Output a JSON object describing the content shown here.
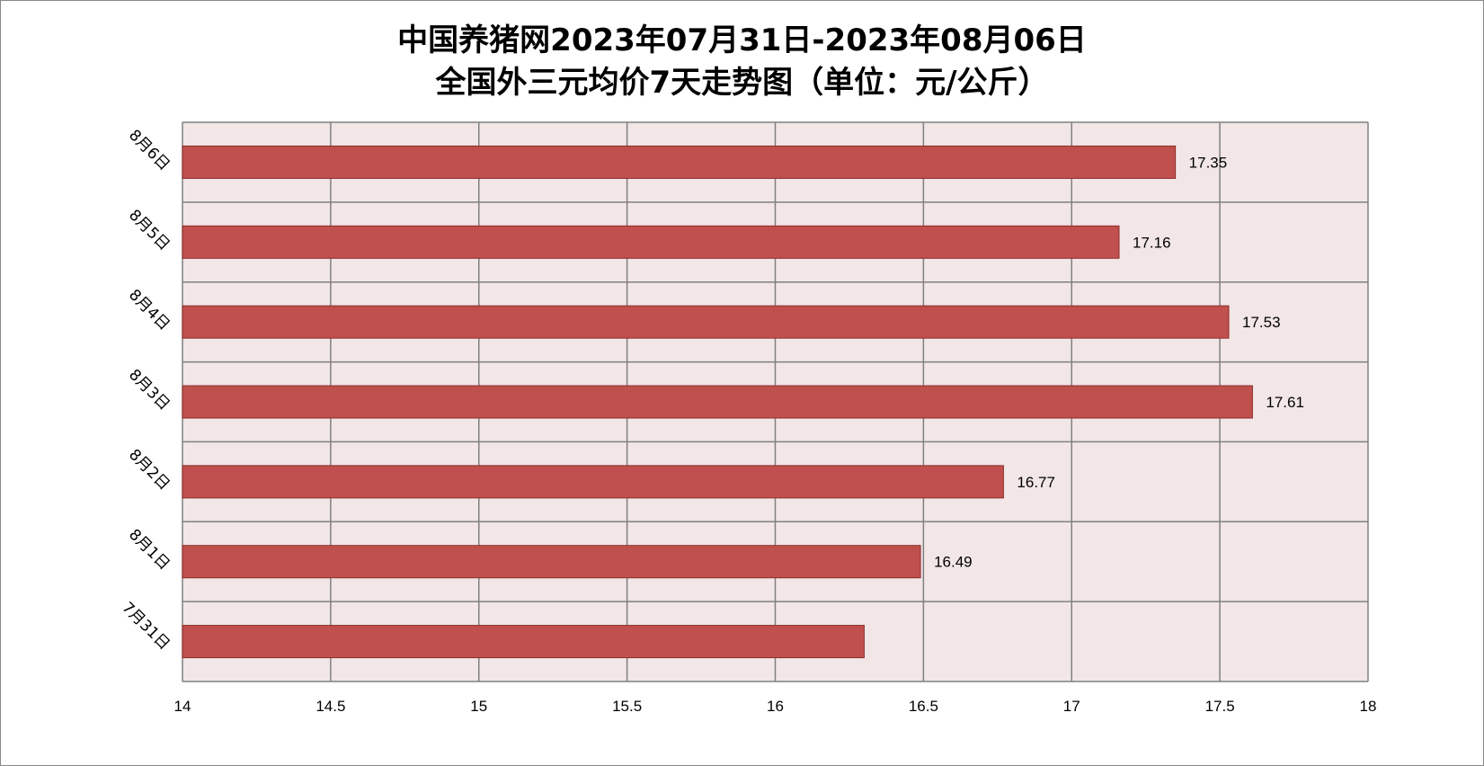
{
  "chart_data": {
    "type": "bar",
    "orientation": "horizontal",
    "title": [
      "中国养猪网2023年07月31日-2023年08月06日",
      "全国外三元均价7天走势图（单位：元/公斤）"
    ],
    "categories": [
      "7月31日",
      "8月1日",
      "8月2日",
      "8月3日",
      "8月4日",
      "8月5日",
      "8月6日"
    ],
    "values": [
      16.3,
      16.49,
      16.77,
      17.61,
      17.53,
      17.16,
      17.35
    ],
    "data_labels": [
      "",
      "16.49",
      "16.77",
      "17.61",
      "17.53",
      "17.16",
      "17.35"
    ],
    "x_ticks": [
      "14",
      "14.5",
      "15",
      "15.5",
      "16",
      "16.5",
      "17",
      "17.5",
      "18"
    ],
    "xlim": [
      14,
      18
    ],
    "grid": true,
    "legend": "none",
    "colors": {
      "bar_fill": "#c0504d",
      "bar_stroke": "#8c2d2b",
      "plot_background": "#f2e6e6",
      "grid": "#808080"
    }
  }
}
